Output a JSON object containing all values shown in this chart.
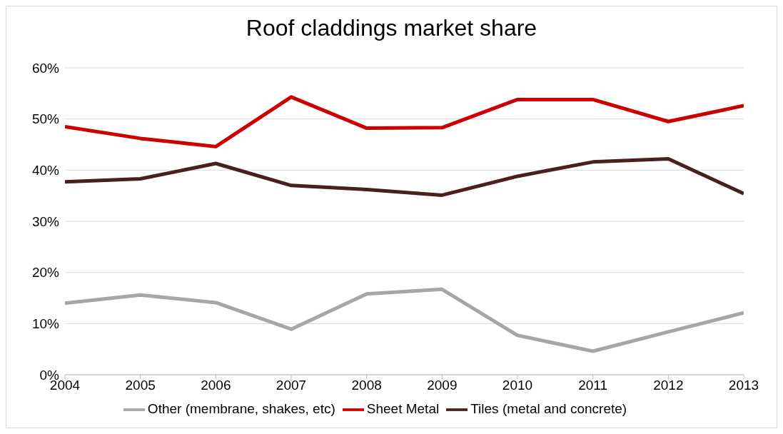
{
  "chart_data": {
    "type": "line",
    "title": "Roof claddings market share",
    "x": [
      2004,
      2005,
      2006,
      2007,
      2008,
      2009,
      2010,
      2011,
      2012,
      2013
    ],
    "series": [
      {
        "name": "Sheet Metal",
        "color": "#cc0000",
        "values": [
          48.5,
          46.2,
          44.6,
          54.3,
          48.2,
          48.3,
          53.8,
          53.8,
          49.5,
          52.6
        ]
      },
      {
        "name": "Tiles (metal and concrete)",
        "color": "#4a1f1f",
        "values": [
          37.7,
          38.3,
          41.3,
          37.0,
          36.2,
          35.1,
          38.8,
          41.6,
          42.2,
          35.4
        ]
      },
      {
        "name": "Other (membrane, shakes, etc)",
        "color": "#a6a6a6",
        "values": [
          14.0,
          15.6,
          14.1,
          8.9,
          15.8,
          16.7,
          7.7,
          4.6,
          8.4,
          12.1
        ]
      }
    ],
    "xlim": [
      2004,
      2013
    ],
    "xticks": [
      2004,
      2005,
      2006,
      2007,
      2008,
      2009,
      2010,
      2011,
      2012,
      2013
    ],
    "ylim": [
      0,
      60
    ],
    "yticks": [
      {
        "value": 0,
        "label": "0%"
      },
      {
        "value": 10,
        "label": "10%"
      },
      {
        "value": 20,
        "label": "20%"
      },
      {
        "value": 30,
        "label": "30%"
      },
      {
        "value": 40,
        "label": "40%"
      },
      {
        "value": 50,
        "label": "50%"
      },
      {
        "value": 60,
        "label": "60%"
      }
    ],
    "grid": "y",
    "legend": "bottom",
    "marker": "none",
    "line_style": "solid"
  }
}
